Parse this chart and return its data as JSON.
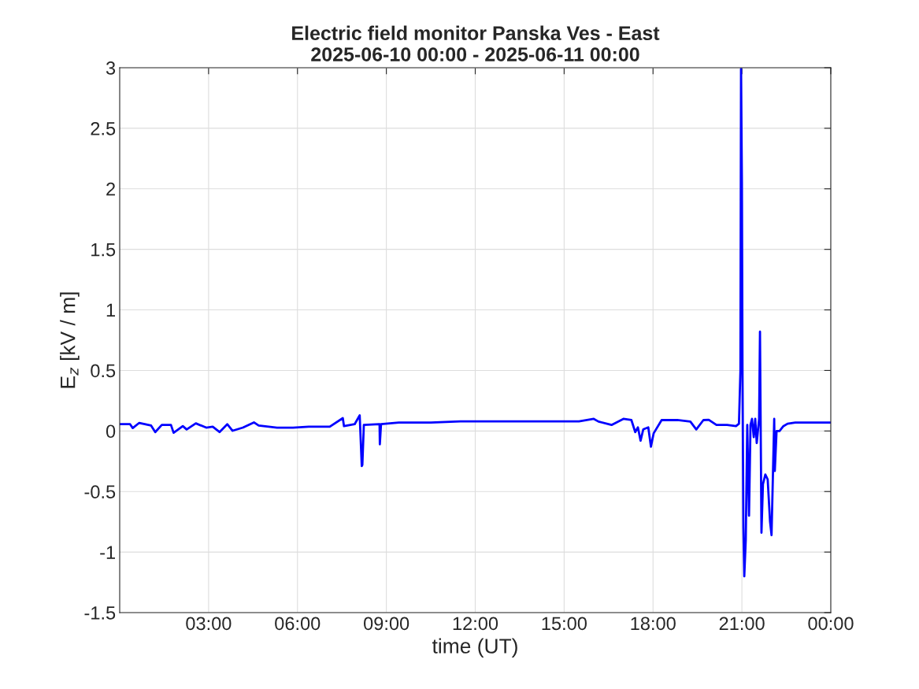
{
  "chart_data": {
    "type": "line",
    "title": "Electric field monitor Panska Ves - East\n2025-06-10 00:00 - 2025-06-11 00:00",
    "xlabel": "time (UT)",
    "ylabel": "E$_{z}$ [kV / m]",
    "x": [
      0,
      0.35,
      0.44,
      0.66,
      1.06,
      1.2,
      1.42,
      1.73,
      1.82,
      2.13,
      2.26,
      2.57,
      2.92,
      3.14,
      3.37,
      3.63,
      3.81,
      4.16,
      4.53,
      4.69,
      5.31,
      5.85,
      6.38,
      7.09,
      7.53,
      7.57,
      7.93,
      8.1,
      8.17,
      8.19,
      8.24,
      8.77,
      8.78,
      8.82,
      9.42,
      10.5,
      11.5,
      12.0,
      13.0,
      14.0,
      15.0,
      15.5,
      16.0,
      16.16,
      16.6,
      17.0,
      17.27,
      17.4,
      17.49,
      17.58,
      17.67,
      17.84,
      17.93,
      18.02,
      18.29,
      18.82,
      19.26,
      19.46,
      19.7,
      19.88,
      20.14,
      20.5,
      20.8,
      20.9,
      20.95,
      20.97,
      21.0,
      21.02,
      21.05,
      21.08,
      21.13,
      21.18,
      21.24,
      21.29,
      21.34,
      21.4,
      21.45,
      21.5,
      21.58,
      21.61,
      21.66,
      21.71,
      21.79,
      21.87,
      21.95,
      22.0,
      22.09,
      22.11,
      22.17,
      22.27,
      22.4,
      22.54,
      22.8,
      23.33,
      24
    ],
    "series": [
      {
        "color": "#0000ff",
        "values": [
          0.056,
          0.056,
          0.024,
          0.067,
          0.045,
          -0.009,
          0.05,
          0.05,
          -0.015,
          0.04,
          0.013,
          0.063,
          0.028,
          0.035,
          -0.009,
          0.056,
          0.002,
          0.028,
          0.071,
          0.045,
          0.028,
          0.028,
          0.035,
          0.035,
          0.106,
          0.04,
          0.056,
          0.13,
          -0.29,
          -0.28,
          0.05,
          0.056,
          -0.11,
          0.056,
          0.07,
          0.07,
          0.08,
          0.08,
          0.08,
          0.08,
          0.08,
          0.08,
          0.1,
          0.078,
          0.05,
          0.1,
          0.09,
          -0.009,
          0.03,
          -0.08,
          0.013,
          0.03,
          -0.13,
          -0.02,
          0.09,
          0.09,
          0.078,
          0.013,
          0.09,
          0.093,
          0.05,
          0.05,
          0.04,
          0.06,
          0.5,
          2.99,
          2.05,
          0.5,
          -0.8,
          -1.2,
          -0.9,
          0.05,
          -0.7,
          0.05,
          0.1,
          -0.05,
          0.1,
          -0.1,
          0.1,
          0.82,
          -0.84,
          -0.44,
          -0.36,
          -0.4,
          -0.75,
          -0.86,
          0.1,
          -0.33,
          0.0,
          0.0,
          0.04,
          0.06,
          0.07,
          0.07,
          0.07
        ]
      }
    ],
    "xlim": [
      0,
      24
    ],
    "xticks": [
      {
        "value": 3,
        "label": "03:00"
      },
      {
        "value": 6,
        "label": "06:00"
      },
      {
        "value": 9,
        "label": "09:00"
      },
      {
        "value": 12,
        "label": "12:00"
      },
      {
        "value": 15,
        "label": "15:00"
      },
      {
        "value": 18,
        "label": "18:00"
      },
      {
        "value": 21,
        "label": "21:00"
      },
      {
        "value": 24,
        "label": "00:00"
      }
    ],
    "ylim": [
      -1.5,
      3
    ],
    "yticks": [
      -1.5,
      -1,
      -0.5,
      0,
      0.5,
      1,
      1.5,
      2,
      2.5,
      3
    ],
    "grid": true,
    "line_style": "solid"
  }
}
